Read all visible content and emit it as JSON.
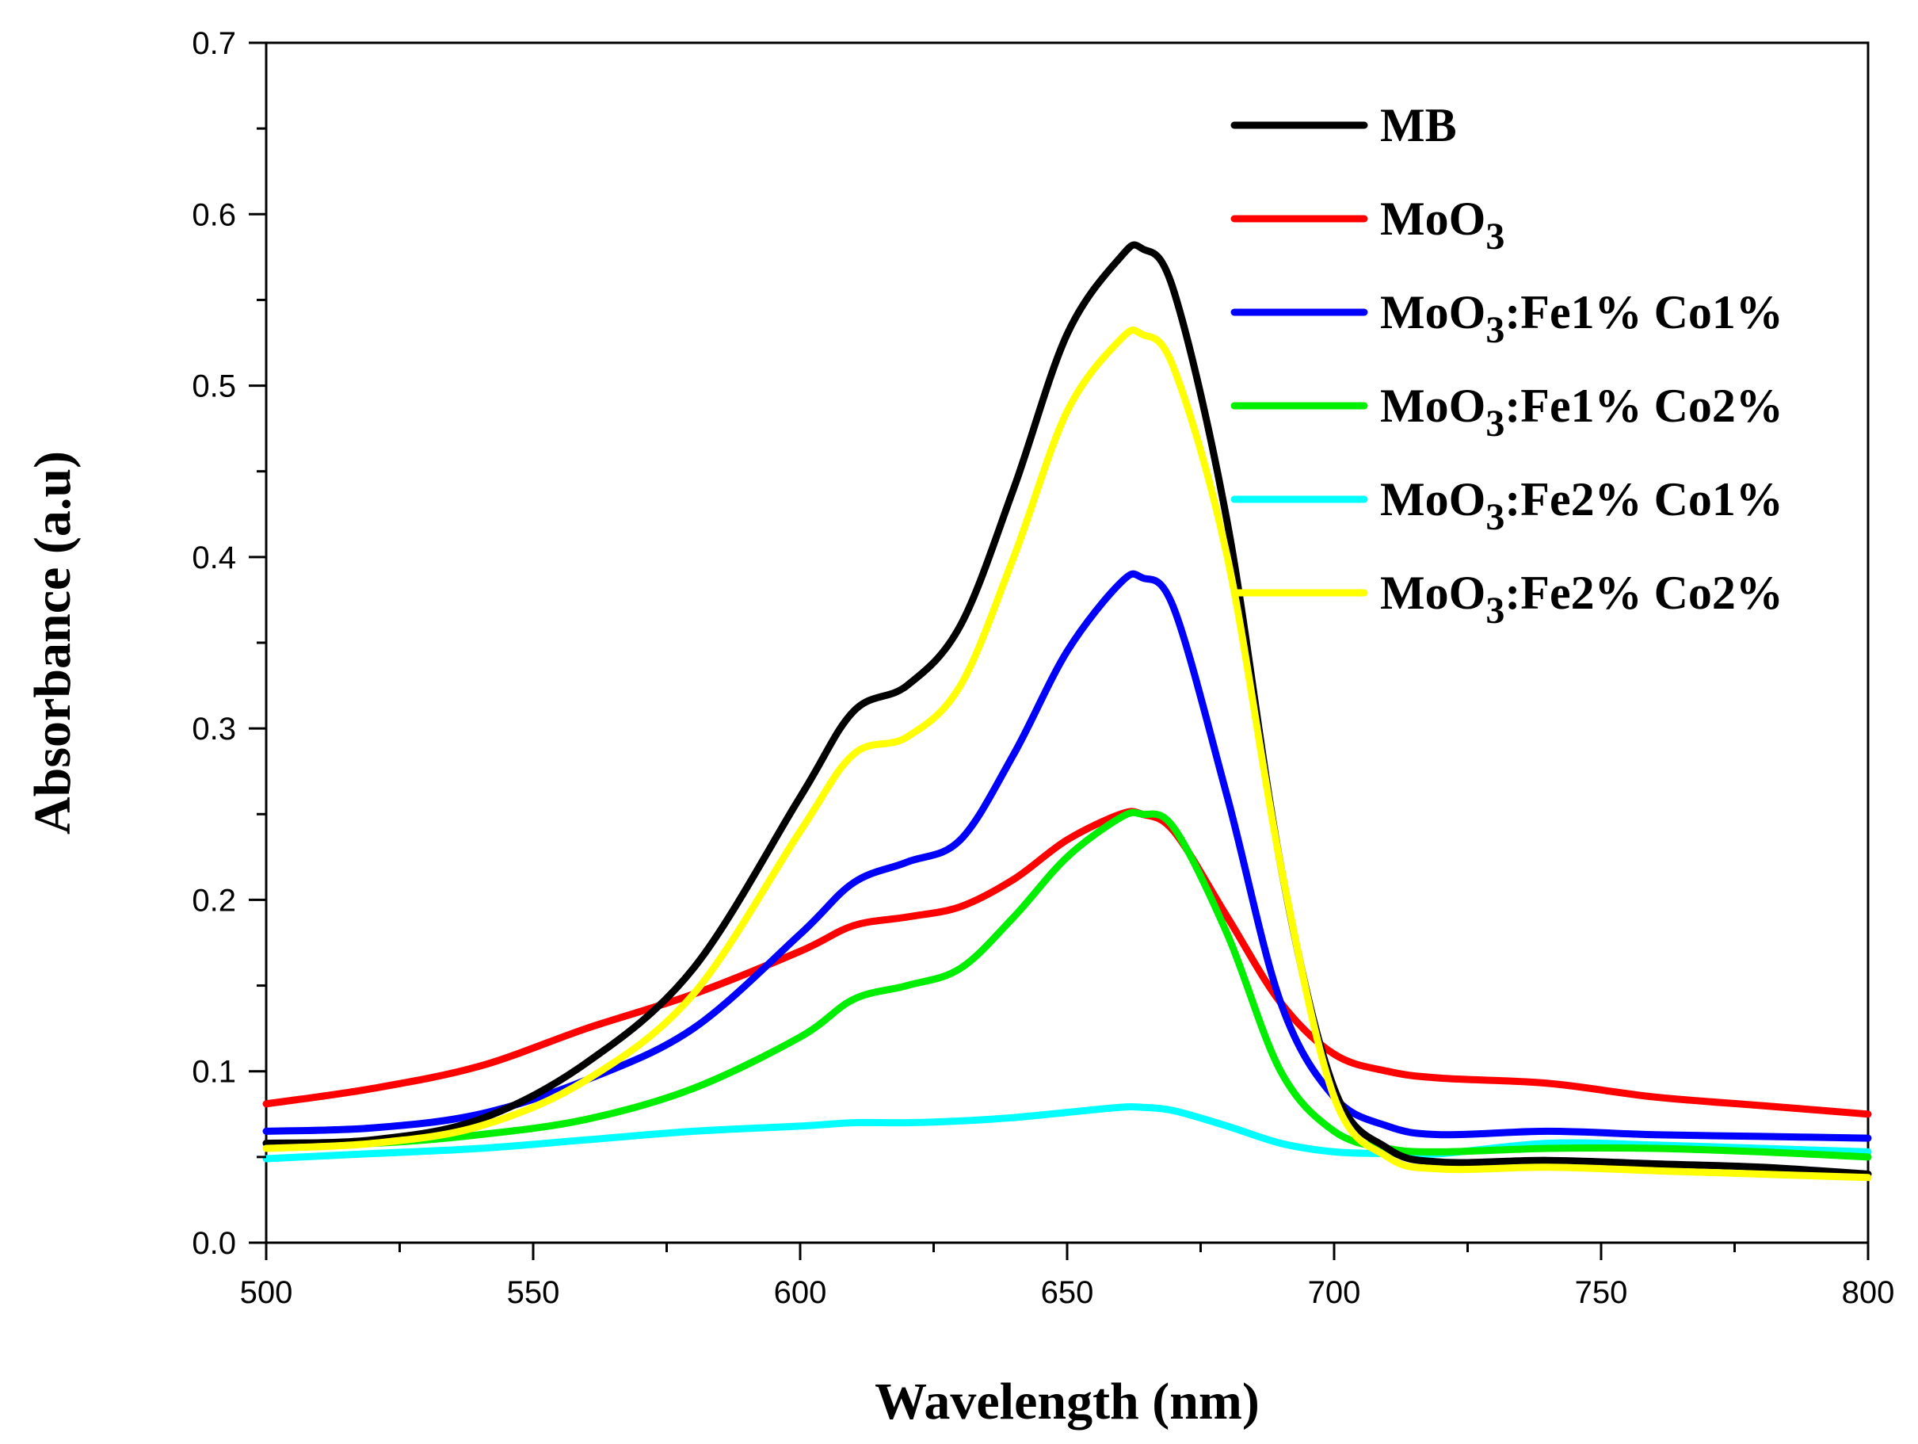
{
  "chart_data": {
    "type": "line",
    "title": "",
    "xlabel": "Wavelength (nm)",
    "ylabel": "Absorbance (a.u)",
    "xlim": [
      500,
      800
    ],
    "ylim": [
      0.0,
      0.7
    ],
    "xticks": [
      500,
      550,
      600,
      650,
      700,
      750,
      800
    ],
    "xtick_labels": [
      "500",
      "550",
      "600",
      "650",
      "700",
      "750",
      "800"
    ],
    "yticks": [
      0.0,
      0.1,
      0.2,
      0.3,
      0.4,
      0.5,
      0.6,
      0.7
    ],
    "ytick_labels": [
      "0.0",
      "0.1",
      "0.2",
      "0.3",
      "0.4",
      "0.5",
      "0.6",
      "0.7"
    ],
    "grid": false,
    "legend_position": "top-right",
    "x": [
      500,
      520,
      540,
      560,
      580,
      600,
      610,
      620,
      630,
      640,
      650,
      660,
      664,
      670,
      680,
      690,
      700,
      710,
      720,
      740,
      760,
      780,
      800
    ],
    "series": [
      {
        "name": "MB",
        "name_main": "MB",
        "name_sub": "",
        "name_rest": "",
        "color": "#000000",
        "values": [
          0.058,
          0.06,
          0.072,
          0.105,
          0.16,
          0.26,
          0.31,
          0.325,
          0.36,
          0.44,
          0.53,
          0.575,
          0.58,
          0.555,
          0.42,
          0.22,
          0.09,
          0.055,
          0.047,
          0.048,
          0.046,
          0.044,
          0.04
        ]
      },
      {
        "name": "MoO3",
        "name_main": "MoO",
        "name_sub": "3",
        "name_rest": "",
        "color": "#ff0000",
        "values": [
          0.081,
          0.09,
          0.103,
          0.125,
          0.145,
          0.17,
          0.185,
          0.19,
          0.196,
          0.212,
          0.235,
          0.25,
          0.25,
          0.24,
          0.19,
          0.14,
          0.11,
          0.1,
          0.096,
          0.093,
          0.085,
          0.08,
          0.075
        ]
      },
      {
        "name": "MoO3:Fe1% Co1%",
        "name_main": "MoO",
        "name_sub": "3",
        "name_rest": ":Fe1% Co1%",
        "color": "#0000ff",
        "values": [
          0.065,
          0.067,
          0.075,
          0.095,
          0.125,
          0.18,
          0.21,
          0.222,
          0.235,
          0.285,
          0.345,
          0.385,
          0.388,
          0.37,
          0.26,
          0.14,
          0.085,
          0.068,
          0.063,
          0.065,
          0.063,
          0.062,
          0.061
        ]
      },
      {
        "name": "MoO3:Fe1% Co2%",
        "name_main": "MoO",
        "name_sub": "3",
        "name_rest": ":Fe1% Co2%",
        "color": "#00ee00",
        "values": [
          0.058,
          0.058,
          0.063,
          0.072,
          0.09,
          0.12,
          0.142,
          0.15,
          0.16,
          0.19,
          0.225,
          0.248,
          0.25,
          0.242,
          0.18,
          0.1,
          0.065,
          0.055,
          0.053,
          0.055,
          0.055,
          0.053,
          0.05
        ]
      },
      {
        "name": "MoO3:Fe2% Co1%",
        "name_main": "MoO",
        "name_sub": "3",
        "name_rest": ":Fe2% Co1%",
        "color": "#00ffff",
        "values": [
          0.049,
          0.052,
          0.055,
          0.06,
          0.065,
          0.068,
          0.07,
          0.07,
          0.071,
          0.073,
          0.076,
          0.079,
          0.079,
          0.077,
          0.068,
          0.058,
          0.053,
          0.052,
          0.052,
          0.058,
          0.057,
          0.055,
          0.053
        ]
      },
      {
        "name": "MoO3:Fe2% Co2%",
        "name_main": "MoO",
        "name_sub": "3",
        "name_rest": ":Fe2% Co2%",
        "color": "#ffff00",
        "values": [
          0.055,
          0.058,
          0.068,
          0.095,
          0.145,
          0.24,
          0.285,
          0.295,
          0.325,
          0.4,
          0.485,
          0.527,
          0.53,
          0.51,
          0.4,
          0.22,
          0.085,
          0.05,
          0.043,
          0.044,
          0.042,
          0.04,
          0.038
        ]
      }
    ]
  }
}
